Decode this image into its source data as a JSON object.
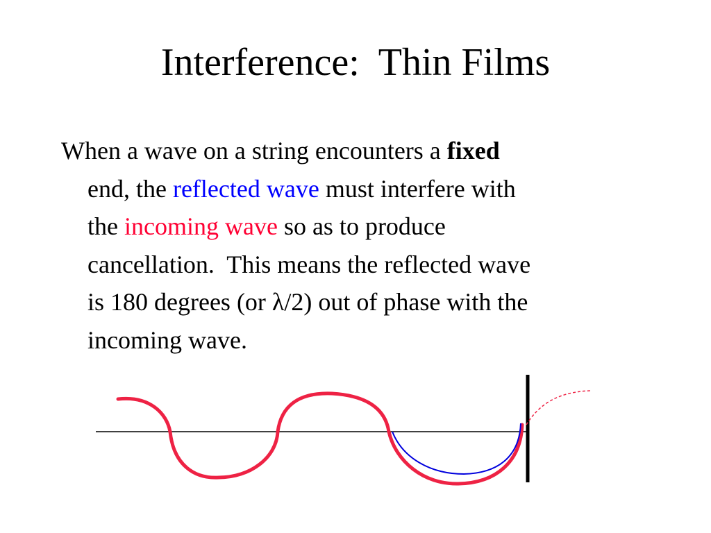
{
  "title": "Interference:  Thin Films",
  "body": {
    "lines": [
      {
        "runs": [
          {
            "text": "When a wave on a string encounters a "
          },
          {
            "text": "fixed",
            "bold": true
          }
        ]
      },
      {
        "runs": [
          {
            "text": "end, the "
          },
          {
            "text": "reflected wave",
            "color": "#0000ff"
          },
          {
            "text": " must interfere with"
          }
        ]
      },
      {
        "runs": [
          {
            "text": "the "
          },
          {
            "text": "incoming wave",
            "color": "#ff0033"
          },
          {
            "text": " so as to produce"
          }
        ]
      },
      {
        "runs": [
          {
            "text": "cancellation.  This means the reflected wave"
          }
        ]
      },
      {
        "runs": [
          {
            "text": "is 180 degrees (or λ/2) out of phase with the"
          }
        ]
      },
      {
        "runs": [
          {
            "text": "incoming wave."
          }
        ]
      }
    ]
  }
}
